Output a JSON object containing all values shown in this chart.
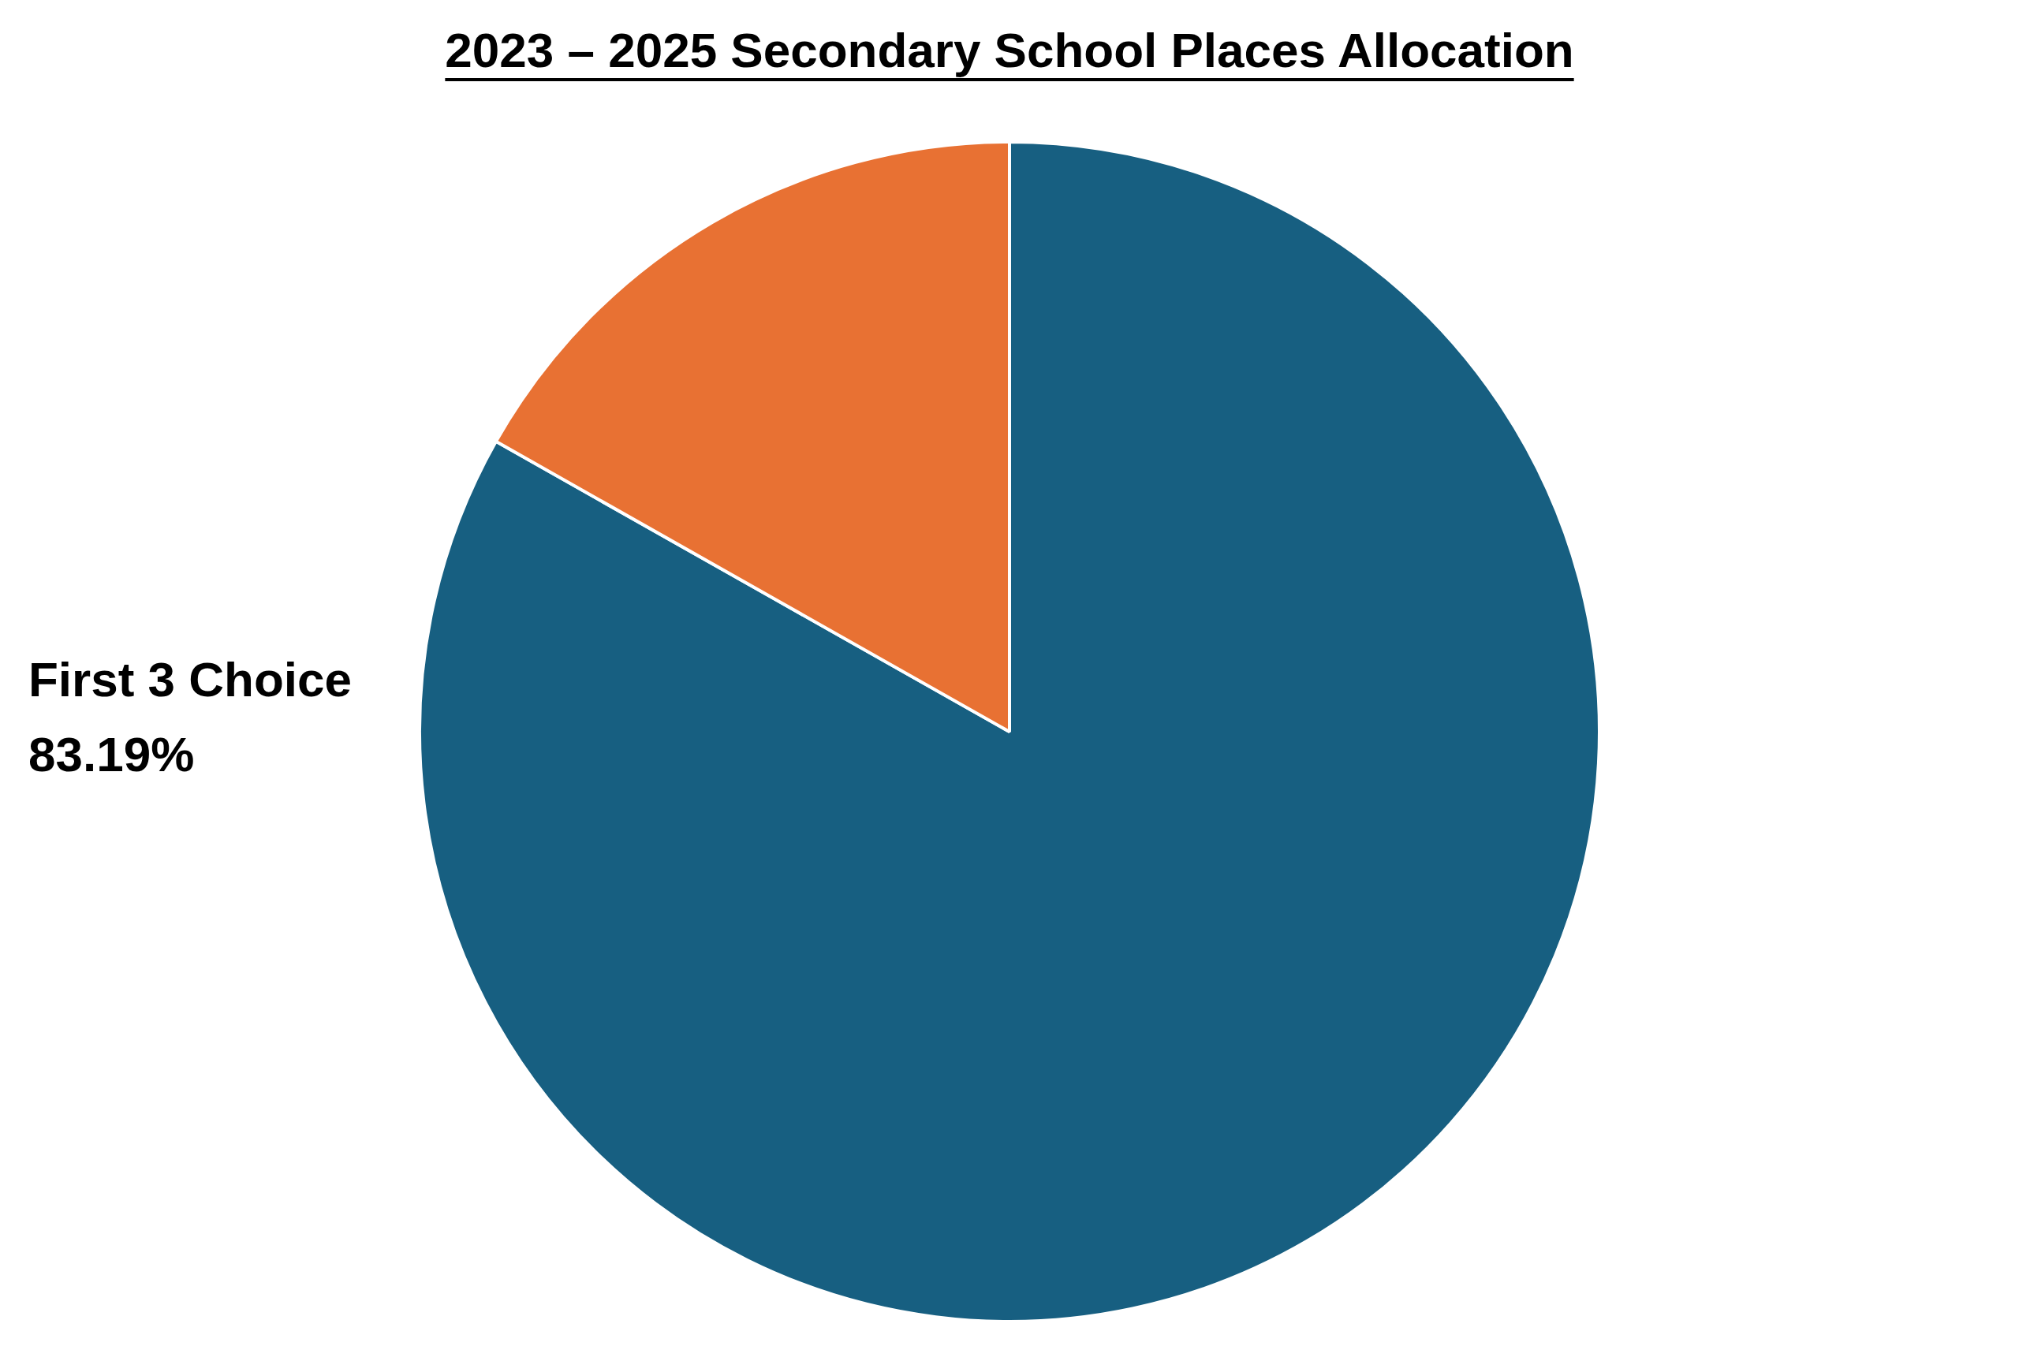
{
  "chart_data": {
    "type": "pie",
    "title": "2023 – 2025 Secondary School Places Allocation",
    "categories": [
      "First 3 Choice",
      null
    ],
    "values": [
      83.19,
      16.81
    ],
    "colors": [
      "#175f81",
      "#e87133"
    ],
    "value_labels": [
      "83.19%",
      null
    ]
  }
}
